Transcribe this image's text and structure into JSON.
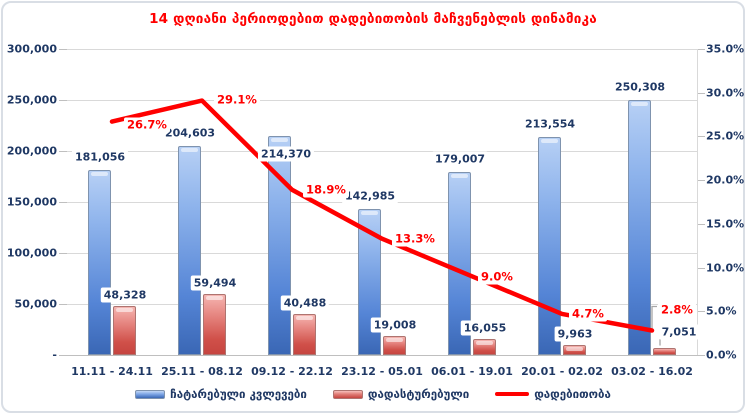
{
  "title": "14 დღიანი პერიოდებით დადებითობის მაჩვენებლის დინამიკა",
  "colors": {
    "title": "#FF0000",
    "axis_text": "#1F3864",
    "gridline": "#D9D9D9",
    "line": "#FF0000",
    "bar_blue": "#4273C5",
    "bar_red": "#D05049"
  },
  "chart_data": {
    "type": "combo-bar-line",
    "title": "14 დღიანი პერიოდებით დადებითობის მაჩვენებლის დინამიკა",
    "categories": [
      "11.11 - 24.11",
      "25.11 - 08.12",
      "09.12 - 22.12",
      "23.12 - 05.01",
      "06.01 - 19.01",
      "20.01 - 02.02",
      "03.02 - 16.02"
    ],
    "series": [
      {
        "name": "ჩატარებული კვლევები",
        "type": "bar",
        "axis": "left",
        "color": "#4273C5",
        "values": [
          181056,
          204603,
          214370,
          142985,
          179007,
          213554,
          250308
        ],
        "labels": [
          "181,056",
          "204,603",
          "214,370",
          "142,985",
          "179,007",
          "213,554",
          "250,308"
        ]
      },
      {
        "name": "დადასტურებული",
        "type": "bar",
        "axis": "left",
        "color": "#D05049",
        "values": [
          48328,
          59494,
          40488,
          19008,
          16055,
          9963,
          7051
        ],
        "labels": [
          "48,328",
          "59,494",
          "40,488",
          "19,008",
          "16,055",
          "9,963",
          "7,051"
        ]
      },
      {
        "name": "დადებითობა",
        "type": "line",
        "axis": "right",
        "color": "#FF0000",
        "values": [
          26.7,
          29.1,
          18.9,
          13.3,
          9.0,
          4.7,
          2.8
        ],
        "labels": [
          "26.7%",
          "29.1%",
          "18.9%",
          "13.3%",
          "9.0%",
          "4.7%",
          "2.8%"
        ]
      }
    ],
    "left_axis": {
      "min": 0,
      "max": 300000,
      "step": 50000,
      "tick_labels": [
        "300,000",
        "250,000",
        "200,000",
        "150,000",
        "100,000",
        "50,000",
        "-"
      ]
    },
    "right_axis": {
      "min": 0,
      "max": 35,
      "step": 5,
      "tick_labels": [
        "35.0%",
        "30.0%",
        "25.0%",
        "20.0%",
        "15.0%",
        "10.0%",
        "5.0%",
        "0.0%"
      ]
    },
    "grid": true,
    "legend_position": "bottom"
  }
}
